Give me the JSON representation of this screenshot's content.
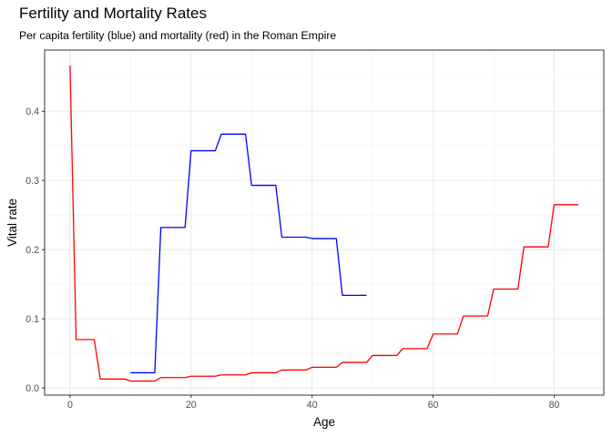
{
  "chart_data": {
    "type": "line",
    "title": "Fertility and Mortality Rates",
    "subtitle": "Per capita fertility (blue) and mortality (red) in the Roman Empire",
    "xlabel": "Age",
    "ylabel": "Vital rate",
    "xlim": [
      -4.2,
      88.2
    ],
    "ylim": [
      -0.0103,
      0.4885
    ],
    "x_ticks": [
      0,
      20,
      40,
      60,
      80
    ],
    "y_ticks": [
      0.0,
      0.1,
      0.2,
      0.3,
      0.4
    ],
    "x_tick_labels": [
      "0",
      "20",
      "40",
      "60",
      "80"
    ],
    "y_tick_labels": [
      "0.0",
      "0.1",
      "0.2",
      "0.3",
      "0.4"
    ],
    "grid": true,
    "legend": "none",
    "series": [
      {
        "color": "#ff0000",
        "x": [
          0,
          1,
          4,
          5,
          9,
          10,
          14,
          15,
          19,
          20,
          24,
          25,
          29,
          30,
          34,
          35,
          39,
          40,
          44,
          45,
          49,
          50,
          54,
          55,
          59,
          60,
          64,
          65,
          69,
          70,
          74,
          75,
          79,
          80,
          84
        ],
        "y": [
          0.466,
          0.07,
          0.07,
          0.013,
          0.013,
          0.01,
          0.01,
          0.015,
          0.015,
          0.017,
          0.017,
          0.019,
          0.019,
          0.022,
          0.022,
          0.026,
          0.026,
          0.03,
          0.03,
          0.037,
          0.037,
          0.047,
          0.047,
          0.057,
          0.057,
          0.078,
          0.078,
          0.104,
          0.104,
          0.143,
          0.143,
          0.204,
          0.204,
          0.265,
          0.265
        ]
      },
      {
        "color": "#0000ff",
        "x": [
          10,
          14,
          15,
          19,
          20,
          24,
          25,
          29,
          30,
          34,
          35,
          39,
          40,
          44,
          45,
          49
        ],
        "y": [
          0.022,
          0.022,
          0.232,
          0.232,
          0.343,
          0.343,
          0.367,
          0.367,
          0.293,
          0.293,
          0.218,
          0.218,
          0.216,
          0.216,
          0.134,
          0.134
        ]
      }
    ]
  }
}
